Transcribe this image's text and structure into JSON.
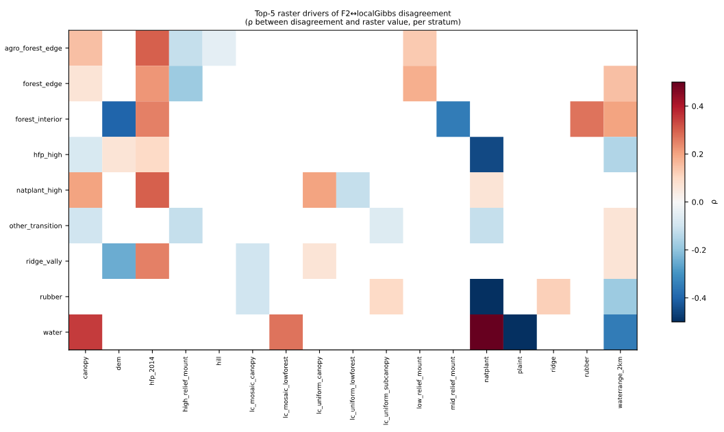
{
  "chart_data": {
    "type": "heatmap",
    "title": "Top-5 raster drivers of F2↔localGibbs disagreement\n(ρ between disagreement and raster value, per stratum)",
    "clabel": "ρ",
    "categories": [
      "canopy",
      "dem",
      "hfp_2014",
      "high_relief_mount",
      "hill",
      "lc_mosaic_canopy",
      "lc_mosaic_lowforest",
      "lc_uniform_canopy",
      "lc_uniform_lowforest",
      "lc_uniform_subcanopy",
      "low_relief_mount",
      "mid_relief_mount",
      "natplant",
      "plaint",
      "ridge",
      "rubber",
      "waterrange_2km"
    ],
    "y_categories": [
      "agro_forest_edge",
      "forest_edge",
      "forest_interior",
      "hfp_high",
      "natplant_high",
      "other_transition",
      "ridge_vally",
      "rubber",
      "water"
    ],
    "cells": [
      [
        0.15,
        null,
        0.3,
        -0.12,
        -0.05,
        null,
        null,
        null,
        null,
        null,
        0.13,
        null,
        null,
        null,
        null,
        null,
        null
      ],
      [
        0.07,
        null,
        0.22,
        -0.18,
        null,
        null,
        null,
        null,
        null,
        null,
        0.18,
        null,
        null,
        null,
        null,
        null,
        0.15
      ],
      [
        null,
        -0.4,
        0.25,
        null,
        null,
        null,
        null,
        null,
        null,
        null,
        null,
        -0.35,
        null,
        null,
        null,
        0.27,
        0.2
      ],
      [
        -0.08,
        0.07,
        0.1,
        null,
        null,
        null,
        null,
        null,
        null,
        null,
        null,
        null,
        -0.45,
        null,
        null,
        null,
        -0.15
      ],
      [
        0.2,
        null,
        0.3,
        null,
        null,
        null,
        null,
        0.2,
        -0.12,
        null,
        null,
        null,
        0.07,
        null,
        null,
        null,
        null
      ],
      [
        -0.1,
        null,
        null,
        -0.12,
        null,
        null,
        null,
        null,
        null,
        -0.07,
        null,
        null,
        -0.12,
        null,
        null,
        null,
        0.07
      ],
      [
        null,
        -0.25,
        0.25,
        null,
        null,
        -0.1,
        null,
        0.07,
        null,
        null,
        null,
        null,
        null,
        null,
        null,
        null,
        0.07
      ],
      [
        null,
        null,
        null,
        null,
        null,
        -0.1,
        null,
        null,
        null,
        0.1,
        null,
        null,
        -0.5,
        null,
        0.12,
        null,
        -0.18
      ],
      [
        0.35,
        null,
        null,
        null,
        null,
        null,
        0.27,
        null,
        null,
        null,
        null,
        null,
        0.5,
        -0.5,
        null,
        null,
        -0.35
      ]
    ],
    "clim": [
      -0.5,
      0.5
    ],
    "cticks": [
      0.4,
      0.2,
      {
        "value": 0.0,
        "label": "0.0"
      },
      -0.2,
      -0.4
    ]
  }
}
